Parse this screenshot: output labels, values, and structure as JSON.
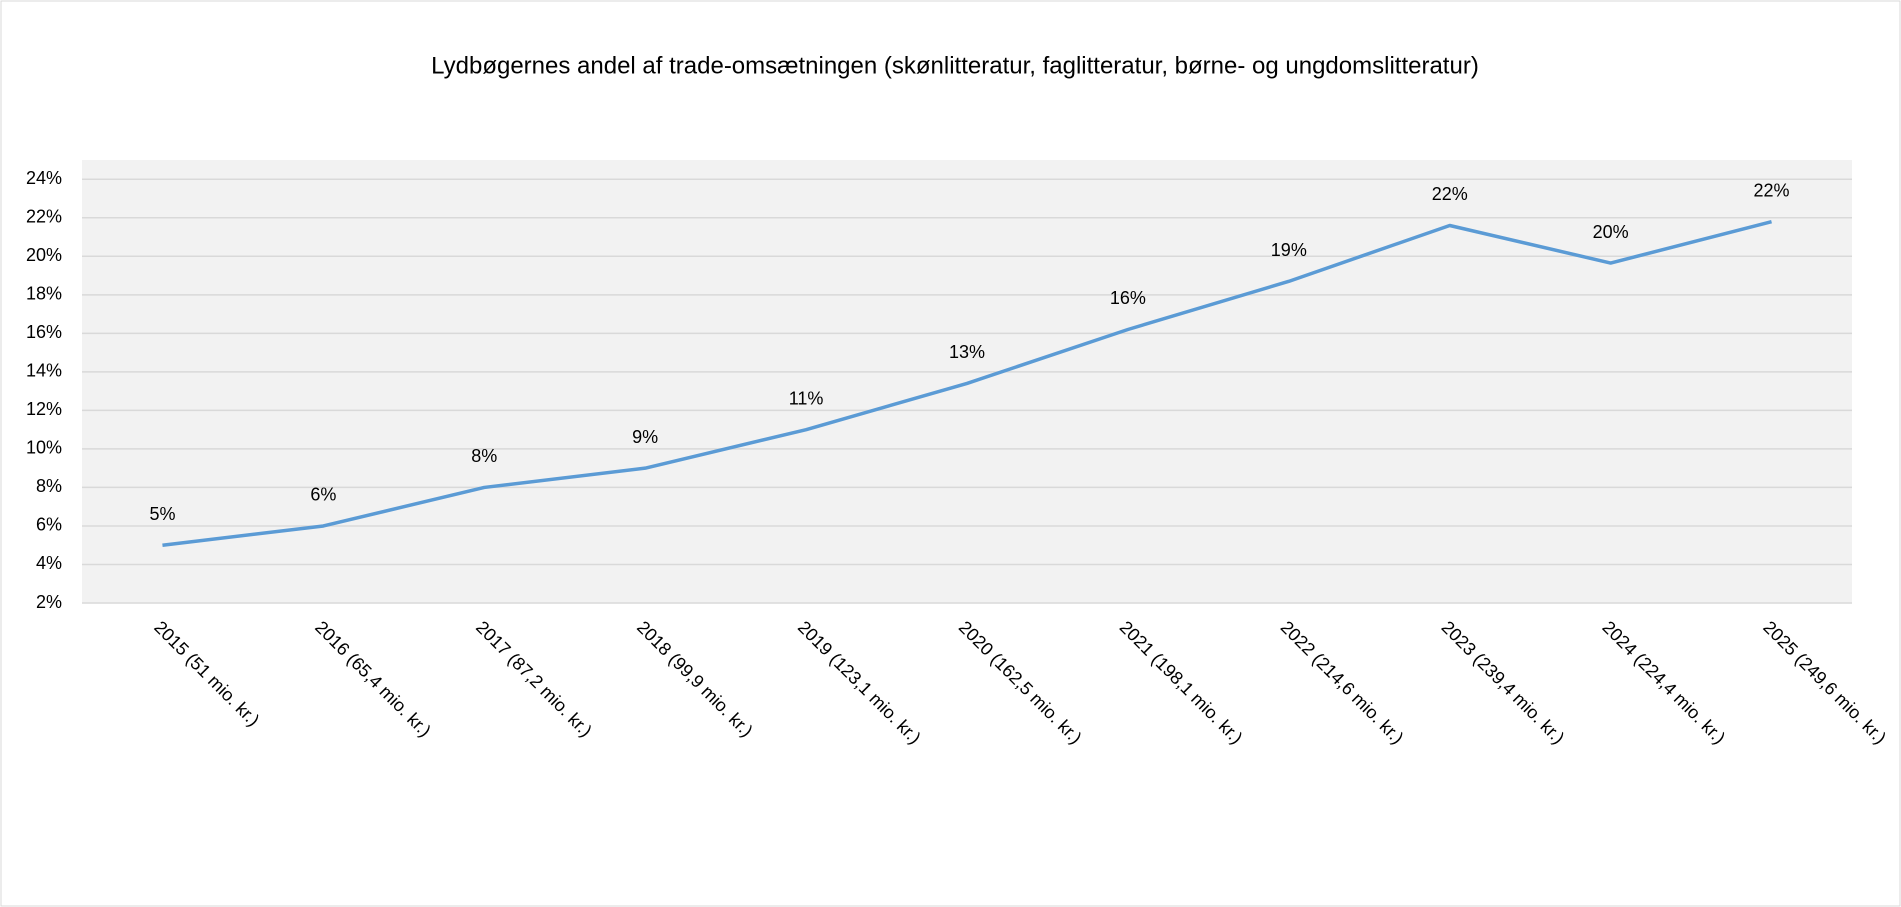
{
  "chart_data": {
    "type": "line",
    "title": "Lydbøgernes andel af trade-omsætningen (skønlitteratur, faglitteratur, børne- og ungdomslitteratur)",
    "categories": [
      "2015 (51 mio. kr.)",
      "2016 (65,4 mio. kr.)",
      "2017 (87,2 mio. kr.)",
      "2018 (99,9 mio. kr.)",
      "2019 (123,1 mio. kr.)",
      "2020 (162,5 mio. kr.)",
      "2021 (198,1 mio. kr.)",
      "2022 (214,6 mio. kr.)",
      "2023 (239,4 mio. kr.)",
      "2024 (224,4 mio. kr.)",
      "2025 (249,6 mio. kr.)"
    ],
    "values": [
      5,
      6,
      8,
      9,
      11,
      13.4,
      16.2,
      18.7,
      21.6,
      19.65,
      21.8
    ],
    "value_labels": [
      "5%",
      "6%",
      "8%",
      "9%",
      "11%",
      "13%",
      "16%",
      "19%",
      "22%",
      "20%",
      "22%"
    ],
    "color": "#5b9bd5",
    "ylim": [
      2,
      25
    ],
    "yticks": [
      {
        "value": 2,
        "label": "2%"
      },
      {
        "value": 4,
        "label": "4%"
      },
      {
        "value": 6,
        "label": "6%"
      },
      {
        "value": 8,
        "label": "8%"
      },
      {
        "value": 10,
        "label": "10%"
      },
      {
        "value": 12,
        "label": "12%"
      },
      {
        "value": 14,
        "label": "14%"
      },
      {
        "value": 16,
        "label": "16%"
      },
      {
        "value": 18,
        "label": "18%"
      },
      {
        "value": 20,
        "label": "20%"
      },
      {
        "value": 22,
        "label": "22%"
      },
      {
        "value": 24,
        "label": "24%"
      }
    ],
    "grid": true
  }
}
